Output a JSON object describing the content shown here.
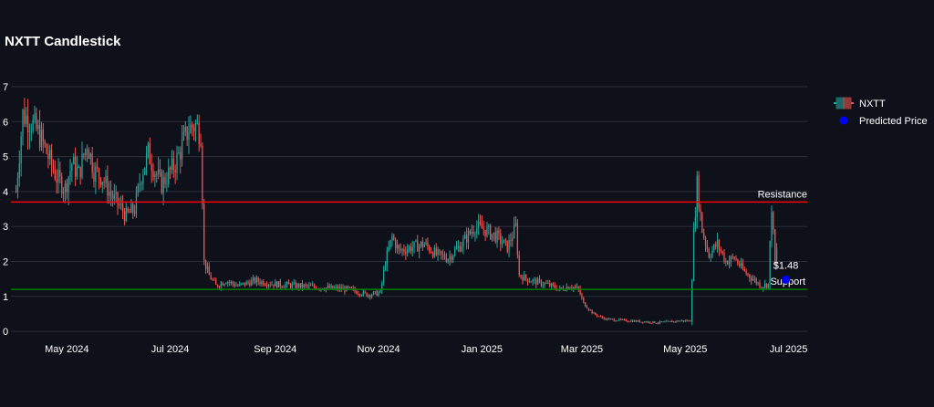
{
  "chart_data": {
    "type": "candlestick",
    "title": "NXTT Candlestick",
    "xlabel": "",
    "ylabel": "",
    "x_range": [
      "2024-03-29",
      "2025-07-12"
    ],
    "y_range": [
      -0.05,
      7.0
    ],
    "x_ticks": [
      {
        "date": "2024-05-01",
        "label": "May 2024"
      },
      {
        "date": "2024-07-01",
        "label": "Jul 2024"
      },
      {
        "date": "2024-09-01",
        "label": "Sep 2024"
      },
      {
        "date": "2024-11-01",
        "label": "Nov 2024"
      },
      {
        "date": "2025-01-01",
        "label": "Jan 2025"
      },
      {
        "date": "2025-03-01",
        "label": "Mar 2025"
      },
      {
        "date": "2025-05-01",
        "label": "May 2025"
      },
      {
        "date": "2025-07-01",
        "label": "Jul 2025"
      }
    ],
    "y_ticks": [
      {
        "value": 0,
        "label": "0"
      },
      {
        "value": 1,
        "label": "1"
      },
      {
        "value": 2,
        "label": "2"
      },
      {
        "value": 3,
        "label": "3"
      },
      {
        "value": 4,
        "label": "4"
      },
      {
        "value": 5,
        "label": "5"
      },
      {
        "value": 6,
        "label": "6"
      },
      {
        "value": 7,
        "label": "7"
      }
    ],
    "grid": true,
    "legend_position": "right",
    "series": [
      {
        "name": "NXTT",
        "type": "candlestick",
        "increasing_color": "#26a69a",
        "decreasing_color": "#ef5350"
      },
      {
        "name": "Predicted Price",
        "type": "marker",
        "color": "#0000ff",
        "date": "2025-06-24",
        "value": 1.48,
        "label": "$1.48"
      }
    ],
    "reference_lines": [
      {
        "name": "Resistance",
        "value": 3.7,
        "color": "#ff0000",
        "label": "Resistance"
      },
      {
        "name": "Support",
        "value": 1.2,
        "color": "#008000",
        "label": "Support"
      }
    ],
    "price_path": [
      [
        "2024-04-01",
        4.0
      ],
      [
        "2024-04-05",
        6.2
      ],
      [
        "2024-04-10",
        6.0
      ],
      [
        "2024-04-15",
        5.6
      ],
      [
        "2024-04-20",
        5.0
      ],
      [
        "2024-04-25",
        4.4
      ],
      [
        "2024-04-30",
        4.1
      ],
      [
        "2024-05-04",
        4.8
      ],
      [
        "2024-05-08",
        4.5
      ],
      [
        "2024-05-13",
        5.4
      ],
      [
        "2024-05-17",
        4.6
      ],
      [
        "2024-05-22",
        4.4
      ],
      [
        "2024-05-27",
        3.9
      ],
      [
        "2024-06-01",
        3.6
      ],
      [
        "2024-06-05",
        3.3
      ],
      [
        "2024-06-10",
        3.5
      ],
      [
        "2024-06-14",
        4.5
      ],
      [
        "2024-06-18",
        5.1
      ],
      [
        "2024-06-22",
        4.6
      ],
      [
        "2024-06-26",
        4.2
      ],
      [
        "2024-06-30",
        4.5
      ],
      [
        "2024-07-04",
        4.8
      ],
      [
        "2024-07-08",
        5.3
      ],
      [
        "2024-07-12",
        5.8
      ],
      [
        "2024-07-16",
        5.9
      ],
      [
        "2024-07-19",
        5.7
      ],
      [
        "2024-07-21",
        2.0
      ],
      [
        "2024-07-24",
        1.6
      ],
      [
        "2024-07-28",
        1.3
      ],
      [
        "2024-08-03",
        1.45
      ],
      [
        "2024-08-10",
        1.3
      ],
      [
        "2024-08-20",
        1.45
      ],
      [
        "2024-09-01",
        1.35
      ],
      [
        "2024-09-15",
        1.3
      ],
      [
        "2024-09-30",
        1.25
      ],
      [
        "2024-10-15",
        1.2
      ],
      [
        "2024-10-25",
        1.05
      ],
      [
        "2024-11-02",
        1.1
      ],
      [
        "2024-11-05",
        2.0
      ],
      [
        "2024-11-09",
        2.7
      ],
      [
        "2024-11-13",
        2.3
      ],
      [
        "2024-11-20",
        2.4
      ],
      [
        "2024-11-28",
        2.5
      ],
      [
        "2024-12-05",
        2.2
      ],
      [
        "2024-12-12",
        2.1
      ],
      [
        "2024-12-20",
        2.5
      ],
      [
        "2024-12-28",
        3.0
      ],
      [
        "2025-01-03",
        2.9
      ],
      [
        "2025-01-10",
        2.7
      ],
      [
        "2025-01-16",
        2.4
      ],
      [
        "2025-01-21",
        3.0
      ],
      [
        "2025-01-23",
        1.6
      ],
      [
        "2025-01-30",
        1.45
      ],
      [
        "2025-02-08",
        1.35
      ],
      [
        "2025-02-16",
        1.2
      ],
      [
        "2025-02-22",
        1.3
      ],
      [
        "2025-02-27",
        1.2
      ],
      [
        "2025-03-02",
        0.8
      ],
      [
        "2025-03-08",
        0.5
      ],
      [
        "2025-03-15",
        0.35
      ],
      [
        "2025-03-30",
        0.3
      ],
      [
        "2025-04-15",
        0.25
      ],
      [
        "2025-04-28",
        0.3
      ],
      [
        "2025-05-04",
        0.3
      ],
      [
        "2025-05-06",
        2.8
      ],
      [
        "2025-05-08",
        4.2
      ],
      [
        "2025-05-11",
        2.9
      ],
      [
        "2025-05-15",
        2.2
      ],
      [
        "2025-05-20",
        2.5
      ],
      [
        "2025-05-25",
        2.0
      ],
      [
        "2025-05-30",
        2.1
      ],
      [
        "2025-06-05",
        1.7
      ],
      [
        "2025-06-10",
        1.5
      ],
      [
        "2025-06-15",
        1.3
      ],
      [
        "2025-06-19",
        1.35
      ],
      [
        "2025-06-21",
        3.6
      ],
      [
        "2025-06-23",
        1.9
      ],
      [
        "2025-06-24",
        2.3
      ]
    ]
  }
}
